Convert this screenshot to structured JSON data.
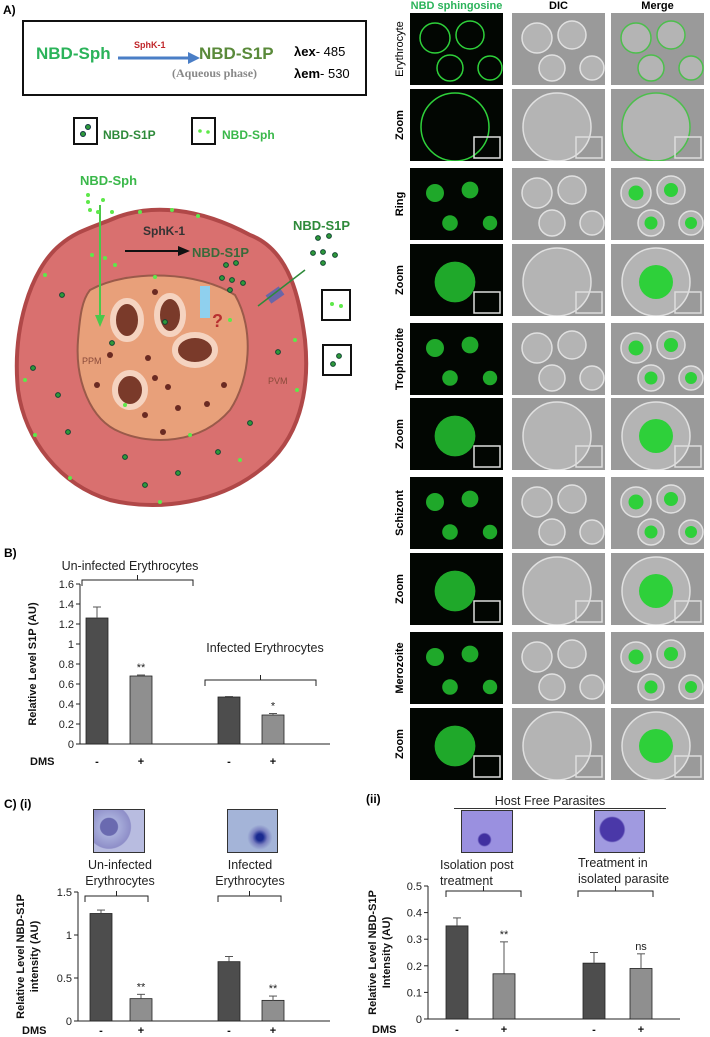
{
  "panel_a": {
    "label": "A)",
    "equation": {
      "substrate": "NBD-Sph",
      "enzyme": "SphK-1",
      "product": "NBD-S1P",
      "phase": "(Aqueous phase)",
      "ex_label": "λex",
      "ex_value": "- 485",
      "em_label": "λem",
      "em_value": "- 530"
    },
    "legend": {
      "s1p": "NBD-S1P",
      "sph": "NBD-Sph"
    },
    "diagram": {
      "sph_label": "NBD-Sph",
      "enzyme_label": "SphK-1",
      "s1p_label_inner": "NBD-S1P",
      "s1p_label_outer": "NBD-S1P",
      "question": "?",
      "ppm": "PPM",
      "pvm": "PVM"
    },
    "colors": {
      "rbc": "#d9706f",
      "rbc_border": "#b04848",
      "parasite": "#e8a07a",
      "sph_dot": "#5ee84a",
      "s1p_dot": "#2e9a3a"
    }
  },
  "micrographs": {
    "columns": [
      "NBD sphingosine",
      "DIC",
      "Merge"
    ],
    "rows": [
      "Erythrocyte",
      "Zoom",
      "Ring",
      "Zoom",
      "Trophozoite",
      "Zoom",
      "Schizont",
      "Zoom",
      "Merozoite",
      "Zoom"
    ]
  },
  "panel_b": {
    "label": "B)",
    "group1": "Un-infected Erythrocytes",
    "group2": "Infected Erythrocytes",
    "dms_label": "DMS"
  },
  "panel_c": {
    "label": "C) (i)",
    "label_ii": "(ii)",
    "i_groups": [
      "Un-infected\nErythrocytes",
      "Infected\nErythrocytes"
    ],
    "ii_header": "Host Free Parasites",
    "ii_groups": [
      "Isolation post\ntreatment",
      "Treatment in\nisolated parasite"
    ],
    "dms_label": "DMS"
  },
  "chart_data": [
    {
      "type": "bar",
      "id": "B",
      "ylabel": "Relative Level S1P (AU)",
      "xlabel": "DMS",
      "ylim": [
        0,
        1.6
      ],
      "yticks": [
        "0",
        "0.2",
        "0.4",
        "0.6",
        "0.8",
        "1",
        "1.2",
        "1.4",
        "1.6"
      ],
      "categories": [
        "-",
        "+",
        "-",
        "+"
      ],
      "groups": [
        "Un-infected Erythrocytes",
        "Un-infected Erythrocytes",
        "Infected Erythrocytes",
        "Infected Erythrocytes"
      ],
      "values": [
        1.26,
        0.68,
        0.47,
        0.29
      ],
      "errors": [
        0.11,
        0.01,
        0.005,
        0.015
      ],
      "annotations": [
        "",
        "**",
        "",
        "*"
      ],
      "colors": [
        "#4d4d4d",
        "#8f8f8f",
        "#4d4d4d",
        "#8f8f8f"
      ]
    },
    {
      "type": "bar",
      "id": "Ci",
      "ylabel": "Relative Level NBD-S1P intensity (AU)",
      "xlabel": "DMS",
      "ylim": [
        0,
        1.5
      ],
      "yticks": [
        "0",
        "0.5",
        "1",
        "1.5"
      ],
      "categories": [
        "-",
        "+",
        "-",
        "+"
      ],
      "values": [
        1.25,
        0.26,
        0.69,
        0.24
      ],
      "errors": [
        0.04,
        0.05,
        0.06,
        0.05
      ],
      "annotations": [
        "",
        "**",
        "",
        "**"
      ],
      "colors": [
        "#4d4d4d",
        "#8f8f8f",
        "#4d4d4d",
        "#8f8f8f"
      ]
    },
    {
      "type": "bar",
      "id": "Cii",
      "ylabel": "Relative Level NBD-S1P Intensity (AU)",
      "xlabel": "DMS",
      "ylim": [
        0,
        0.5
      ],
      "yticks": [
        "0",
        "0.1",
        "0.2",
        "0.3",
        "0.4",
        "0.5"
      ],
      "categories": [
        "-",
        "+",
        "-",
        "+"
      ],
      "values": [
        0.35,
        0.17,
        0.21,
        0.19
      ],
      "errors": [
        0.03,
        0.12,
        0.04,
        0.055
      ],
      "annotations": [
        "",
        "**",
        "",
        "ns"
      ],
      "colors": [
        "#4d4d4d",
        "#8f8f8f",
        "#4d4d4d",
        "#8f8f8f"
      ]
    }
  ]
}
